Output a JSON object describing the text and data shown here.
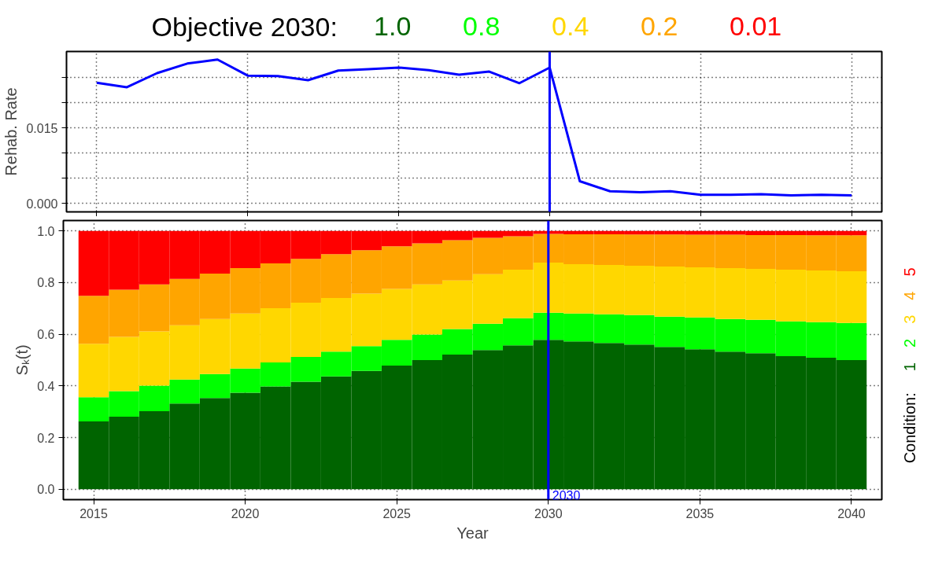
{
  "chart_data": [
    {
      "type": "line",
      "title": "Objective 2030:",
      "annotations": [
        "1.0",
        "0.8",
        "0.4",
        "0.2",
        "0.01"
      ],
      "ylabel": "Rehab. Rate",
      "x": [
        2015,
        2016,
        2017,
        2018,
        2019,
        2020,
        2021,
        2022,
        2023,
        2024,
        2025,
        2026,
        2027,
        2028,
        2029,
        2030,
        2031,
        2032,
        2033,
        2034,
        2035,
        2036,
        2037,
        2038,
        2039,
        2040
      ],
      "series": [
        {
          "color": "#0000ff",
          "values": [
            0.024,
            0.0231,
            0.0259,
            0.0278,
            0.0286,
            0.0254,
            0.0253,
            0.0245,
            0.0264,
            0.0267,
            0.027,
            0.0265,
            0.0256,
            0.0262,
            0.0239,
            0.027,
            0.0044,
            0.0024,
            0.0022,
            0.0024,
            0.0017,
            0.0017,
            0.0018,
            0.0016,
            0.0017,
            0.0016
          ]
        }
      ],
      "xlim": [
        2014,
        2041
      ],
      "ylim": [
        -0.0017,
        0.0302
      ],
      "xticks": [
        2015,
        2020,
        2025,
        2030,
        2035,
        2040
      ],
      "yticks": [
        {
          "value": 0,
          "label": "0.000"
        },
        {
          "value": 0.005,
          "label": null
        },
        {
          "value": 0.01,
          "label": null
        },
        0.015,
        {
          "value": 0.02,
          "label": null
        },
        {
          "value": 0.025,
          "label": null
        }
      ],
      "tick_labels": "y",
      "grid": true,
      "marker": "none",
      "line_style": "solid",
      "ref_lines": [
        {
          "axis": "x",
          "value": 2030,
          "label": null,
          "color": "#0000ff"
        }
      ]
    },
    {
      "type": "bar",
      "stacked": true,
      "xlabel": "Year",
      "ylabel": "Sₖ(t)",
      "legend_title": "Condition:",
      "legend": "right",
      "x": [
        2015,
        2016,
        2017,
        2018,
        2019,
        2020,
        2021,
        2022,
        2023,
        2024,
        2025,
        2026,
        2027,
        2028,
        2029,
        2030,
        2031,
        2032,
        2033,
        2034,
        2035,
        2036,
        2037,
        2038,
        2039,
        2040
      ],
      "series": [
        {
          "name": "1",
          "color": "#006400",
          "values": [
            0.263,
            0.281,
            0.302,
            0.332,
            0.353,
            0.374,
            0.398,
            0.416,
            0.437,
            0.458,
            0.479,
            0.5,
            0.521,
            0.539,
            0.557,
            0.578,
            0.572,
            0.566,
            0.56,
            0.551,
            0.542,
            0.533,
            0.527,
            0.515,
            0.509,
            0.5
          ]
        },
        {
          "name": "2",
          "color": "#00ff00",
          "values": [
            0.093,
            0.099,
            0.099,
            0.093,
            0.093,
            0.093,
            0.093,
            0.096,
            0.096,
            0.096,
            0.099,
            0.099,
            0.099,
            0.102,
            0.105,
            0.105,
            0.108,
            0.111,
            0.114,
            0.117,
            0.123,
            0.126,
            0.129,
            0.135,
            0.138,
            0.144
          ]
        },
        {
          "name": "3",
          "color": "#ffd700",
          "values": [
            0.207,
            0.21,
            0.21,
            0.21,
            0.213,
            0.213,
            0.21,
            0.21,
            0.207,
            0.203,
            0.197,
            0.194,
            0.188,
            0.191,
            0.188,
            0.194,
            0.191,
            0.191,
            0.191,
            0.194,
            0.194,
            0.197,
            0.197,
            0.2,
            0.2,
            0.2
          ]
        },
        {
          "name": "4",
          "color": "#ffa500",
          "values": [
            0.186,
            0.182,
            0.182,
            0.179,
            0.176,
            0.176,
            0.173,
            0.17,
            0.17,
            0.168,
            0.165,
            0.159,
            0.156,
            0.141,
            0.129,
            0.111,
            0.116,
            0.119,
            0.121,
            0.124,
            0.126,
            0.129,
            0.131,
            0.134,
            0.136,
            0.139
          ]
        },
        {
          "name": "5",
          "color": "#ff0000",
          "values": [
            0.251,
            0.228,
            0.207,
            0.186,
            0.165,
            0.144,
            0.126,
            0.108,
            0.09,
            0.075,
            0.06,
            0.048,
            0.036,
            0.027,
            0.021,
            0.012,
            0.013,
            0.013,
            0.014,
            0.014,
            0.015,
            0.015,
            0.016,
            0.016,
            0.017,
            0.017
          ]
        }
      ],
      "xlim": [
        2014,
        2041
      ],
      "ylim": [
        -0.04,
        1.04
      ],
      "xticks": [
        2015,
        2020,
        2025,
        2030,
        2035,
        2040
      ],
      "yticks": [
        {
          "value": 0,
          "label": "0.0"
        },
        0.2,
        0.4,
        0.6,
        0.8,
        {
          "value": 1,
          "label": "1.0"
        }
      ],
      "grid": true,
      "ref_lines": [
        {
          "axis": "x",
          "value": 2030,
          "label": "2030",
          "color": "#0000ff"
        }
      ]
    }
  ]
}
